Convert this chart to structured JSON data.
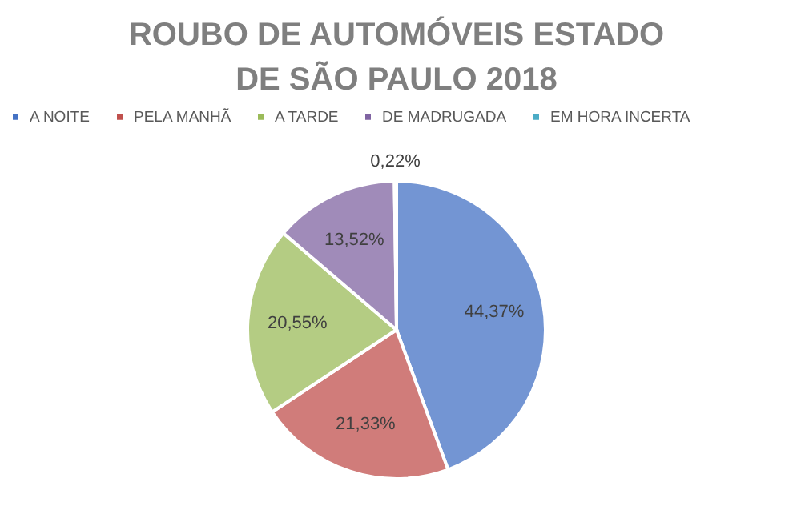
{
  "chart_data": {
    "type": "pie",
    "title": "ROUBO DE AUTOMÓVEIS ESTADO DE SÃO PAULO 2018",
    "categories": [
      "A NOITE",
      "PELA MANHÃ",
      "A TARDE",
      "DE MADRUGADA",
      "EM HORA INCERTA"
    ],
    "values": [
      44.37,
      21.33,
      20.55,
      13.52,
      0.22
    ],
    "colors": [
      "#4472c4",
      "#c0504d",
      "#9bbb59",
      "#8064a2",
      "#4bacc6"
    ],
    "value_labels": [
      "44,37%",
      "21,33%",
      "20,55%",
      "13,52%",
      "0,22%"
    ],
    "legend": "top"
  }
}
